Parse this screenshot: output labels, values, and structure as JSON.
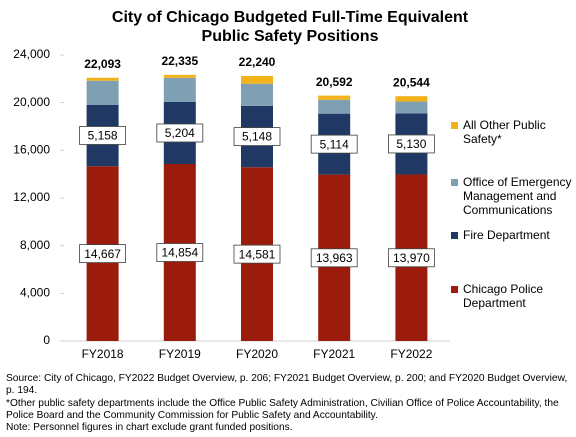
{
  "chart_data": {
    "type": "stacked-bar",
    "title": "City of Chicago Budgeted Full-Time Equivalent Public Safety Positions",
    "categories": [
      "FY2018",
      "FY2019",
      "FY2020",
      "FY2021",
      "FY2022"
    ],
    "series": [
      {
        "name": "Chicago Police Department",
        "color": "#9b1c0c",
        "values": [
          14667,
          14854,
          14581,
          13963,
          13970
        ],
        "value_labels": [
          "14,667",
          "14,854",
          "14,581",
          "13,963",
          "13,970"
        ]
      },
      {
        "name": "Fire Department",
        "color": "#1f3864",
        "values": [
          5158,
          5204,
          5148,
          5114,
          5130
        ],
        "value_labels": [
          "5,158",
          "5,204",
          "5,148",
          "5,114",
          "5,130"
        ]
      },
      {
        "name": "Office of Emergency Management and Communications",
        "color": "#7f9fb3",
        "values": [
          2018,
          2027,
          1861,
          1165,
          994
        ]
      },
      {
        "name": "All Other Public Safety*",
        "color": "#f2b31a",
        "values": [
          250,
          250,
          650,
          350,
          450
        ]
      }
    ],
    "totals": {
      "values": [
        22093,
        22335,
        22240,
        20592,
        20544
      ],
      "value_labels": [
        "22,093",
        "22,335",
        "22,240",
        "20,592",
        "20,544"
      ]
    },
    "ylim": [
      0,
      24000
    ],
    "yticks": [
      0,
      {
        "value": 4000,
        "label": "4,000"
      },
      {
        "value": 8000,
        "label": "8,000"
      },
      {
        "value": 12000,
        "label": "12,000"
      },
      {
        "value": 16000,
        "label": "16,000"
      },
      {
        "value": 20000,
        "label": "20,000"
      },
      {
        "value": 24000,
        "label": "24,000"
      }
    ],
    "grid": false,
    "legend": "right",
    "notes": [
      "Source: City of Chicago, FY2022 Budget Overview, p. 206; FY2021 Budget Overview, p. 200; and FY2020 Budget Overview, p. 194.",
      "*Other public safety departments include the Office Public Safety Administration, Civilian Office of Police Accountability, the Police Board and the Community Commission  for Public Safety and Accountability.",
      "Note: Personnel figures in chart exclude grant funded positions."
    ]
  }
}
